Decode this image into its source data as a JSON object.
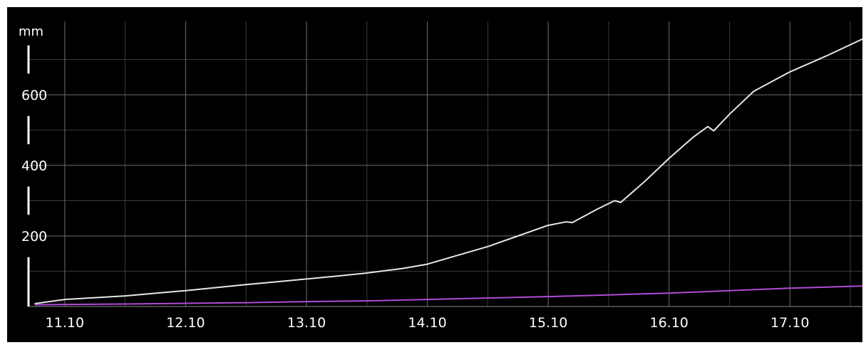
{
  "chart_data": {
    "type": "line",
    "title": "",
    "xlabel": "",
    "ylabel": "mm",
    "x_ticks": [
      "11.10",
      "12.10",
      "13.10",
      "14.10",
      "15.10",
      "16.10",
      "17.10"
    ],
    "y_ticks": [
      200,
      400,
      600
    ],
    "ylim": [
      0,
      800
    ],
    "xlim": [
      10.7,
      17.6
    ],
    "grid": true,
    "legend": "none",
    "colors": {
      "background": "#000000",
      "grid": "#6e6e6e",
      "series_1": "#e6e6e6",
      "series_2": "#b04ad6"
    },
    "series": [
      {
        "x": [
          10.75,
          11.0,
          11.5,
          12.0,
          12.5,
          13.0,
          13.25,
          13.5,
          13.8,
          14.0,
          14.25,
          14.5,
          14.75,
          15.0,
          15.15,
          15.2,
          15.4,
          15.55,
          15.6,
          15.8,
          16.0,
          16.2,
          16.32,
          16.37,
          16.5,
          16.7,
          17.0,
          17.3,
          17.6
        ],
        "y": [
          8,
          20,
          30,
          45,
          62,
          78,
          86,
          95,
          108,
          120,
          145,
          170,
          200,
          230,
          240,
          238,
          275,
          300,
          295,
          355,
          420,
          480,
          510,
          498,
          545,
          610,
          665,
          710,
          758
        ]
      },
      {
        "x": [
          10.75,
          11.5,
          12.0,
          12.5,
          13.0,
          13.5,
          14.0,
          14.5,
          15.0,
          15.5,
          16.0,
          16.5,
          17.0,
          17.6
        ],
        "y": [
          5,
          7,
          9,
          11,
          14,
          16,
          20,
          24,
          28,
          33,
          38,
          45,
          52,
          58
        ]
      }
    ]
  }
}
